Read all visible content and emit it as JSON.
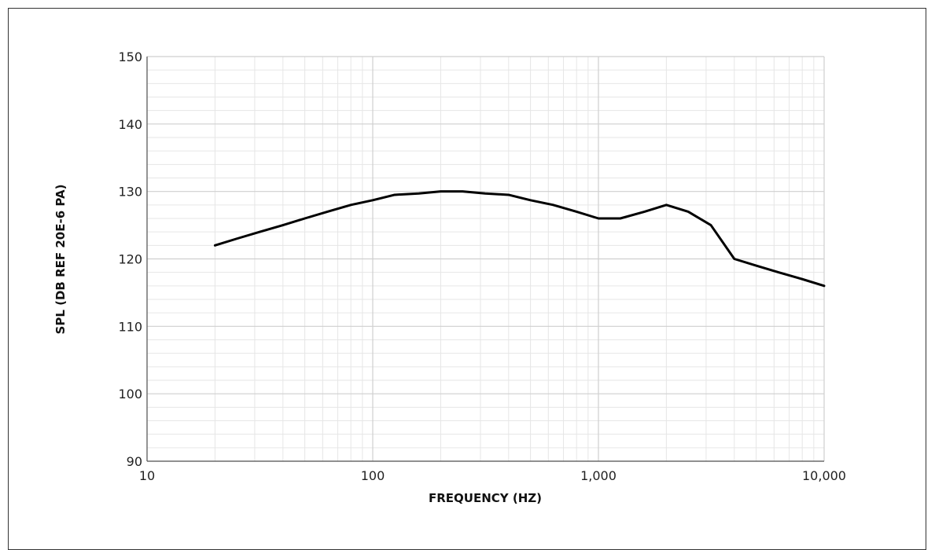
{
  "chart_data": {
    "type": "line",
    "title": "",
    "xlabel": "FREQUENCY (HZ)",
    "ylabel": "SPL (DB REF 20E-6 PA)",
    "x_scale": "log",
    "xlim": [
      10,
      10000
    ],
    "ylim": [
      90,
      150
    ],
    "grid": true,
    "x_ticks": [
      {
        "value": 10,
        "label": "10"
      },
      {
        "value": 100,
        "label": "100"
      },
      {
        "value": 1000,
        "label": "1,000"
      },
      {
        "value": 10000,
        "label": "10,000"
      }
    ],
    "y_ticks": [
      {
        "value": 90,
        "label": "90"
      },
      {
        "value": 100,
        "label": "100"
      },
      {
        "value": 110,
        "label": "110"
      },
      {
        "value": 120,
        "label": "120"
      },
      {
        "value": 130,
        "label": "130"
      },
      {
        "value": 140,
        "label": "140"
      },
      {
        "value": 150,
        "label": "150"
      }
    ],
    "series": [
      {
        "color": "#000000",
        "x": [
          20,
          25,
          31.5,
          40,
          50,
          63,
          80,
          100,
          125,
          160,
          200,
          250,
          315,
          400,
          500,
          630,
          800,
          1000,
          1250,
          1600,
          2000,
          2500,
          3150,
          4000,
          5000,
          6300,
          8000,
          10000
        ],
        "y": [
          122,
          123,
          124,
          125,
          126,
          127,
          128,
          128.7,
          129.5,
          129.7,
          130,
          130,
          129.7,
          129.5,
          128.7,
          128,
          127,
          126,
          126,
          127,
          128,
          127,
          125,
          120,
          119,
          118,
          117,
          116
        ]
      }
    ]
  }
}
